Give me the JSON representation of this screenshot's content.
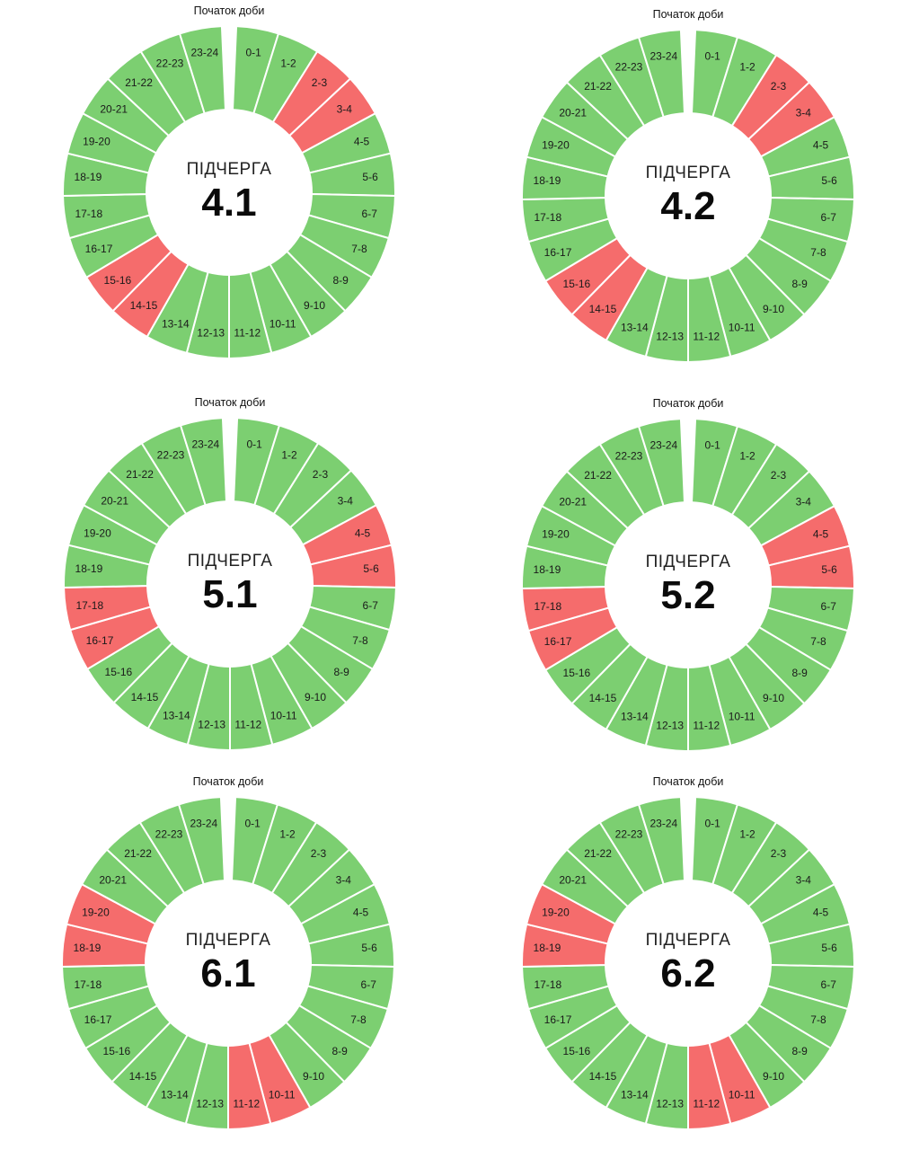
{
  "colors": {
    "on": "#7ccf71",
    "off": "#f56c6c",
    "separator": "#ffffff"
  },
  "chart_data": [
    {
      "type": "donut",
      "top_label": "Початок доби",
      "caption": "ПІДЧЕРГА",
      "queue": "4.1",
      "segments": [
        "0-1",
        "1-2",
        "2-3",
        "3-4",
        "4-5",
        "5-6",
        "6-7",
        "7-8",
        "8-9",
        "9-10",
        "10-11",
        "11-12",
        "12-13",
        "13-14",
        "14-15",
        "15-16",
        "16-17",
        "17-18",
        "18-19",
        "19-20",
        "20-21",
        "21-22",
        "22-23",
        "23-24"
      ],
      "outage_hours": [
        "2-3",
        "3-4",
        "14-15",
        "15-16"
      ]
    },
    {
      "type": "donut",
      "top_label": "Початок доби",
      "caption": "ПІДЧЕРГА",
      "queue": "4.2",
      "segments": [
        "0-1",
        "1-2",
        "2-3",
        "3-4",
        "4-5",
        "5-6",
        "6-7",
        "7-8",
        "8-9",
        "9-10",
        "10-11",
        "11-12",
        "12-13",
        "13-14",
        "14-15",
        "15-16",
        "16-17",
        "17-18",
        "18-19",
        "19-20",
        "20-21",
        "21-22",
        "22-23",
        "23-24"
      ],
      "outage_hours": [
        "2-3",
        "3-4",
        "14-15",
        "15-16"
      ]
    },
    {
      "type": "donut",
      "top_label": "Початок доби",
      "caption": "ПІДЧЕРГА",
      "queue": "5.1",
      "segments": [
        "0-1",
        "1-2",
        "2-3",
        "3-4",
        "4-5",
        "5-6",
        "6-7",
        "7-8",
        "8-9",
        "9-10",
        "10-11",
        "11-12",
        "12-13",
        "13-14",
        "14-15",
        "15-16",
        "16-17",
        "17-18",
        "18-19",
        "19-20",
        "20-21",
        "21-22",
        "22-23",
        "23-24"
      ],
      "outage_hours": [
        "4-5",
        "5-6",
        "16-17",
        "17-18"
      ]
    },
    {
      "type": "donut",
      "top_label": "Початок доби",
      "caption": "ПІДЧЕРГА",
      "queue": "5.2",
      "segments": [
        "0-1",
        "1-2",
        "2-3",
        "3-4",
        "4-5",
        "5-6",
        "6-7",
        "7-8",
        "8-9",
        "9-10",
        "10-11",
        "11-12",
        "12-13",
        "13-14",
        "14-15",
        "15-16",
        "16-17",
        "17-18",
        "18-19",
        "19-20",
        "20-21",
        "21-22",
        "22-23",
        "23-24"
      ],
      "outage_hours": [
        "4-5",
        "5-6",
        "16-17",
        "17-18"
      ]
    },
    {
      "type": "donut",
      "top_label": "Початок доби",
      "caption": "ПІДЧЕРГА",
      "queue": "6.1",
      "segments": [
        "0-1",
        "1-2",
        "2-3",
        "3-4",
        "4-5",
        "5-6",
        "6-7",
        "7-8",
        "8-9",
        "9-10",
        "10-11",
        "11-12",
        "12-13",
        "13-14",
        "14-15",
        "15-16",
        "16-17",
        "17-18",
        "18-19",
        "19-20",
        "20-21",
        "21-22",
        "22-23",
        "23-24"
      ],
      "outage_hours": [
        "10-11",
        "11-12",
        "18-19",
        "19-20"
      ]
    },
    {
      "type": "donut",
      "top_label": "Початок доби",
      "caption": "ПІДЧЕРГА",
      "queue": "6.2",
      "segments": [
        "0-1",
        "1-2",
        "2-3",
        "3-4",
        "4-5",
        "5-6",
        "6-7",
        "7-8",
        "8-9",
        "9-10",
        "10-11",
        "11-12",
        "12-13",
        "13-14",
        "14-15",
        "15-16",
        "16-17",
        "17-18",
        "18-19",
        "19-20",
        "20-21",
        "21-22",
        "22-23",
        "23-24"
      ],
      "outage_hours": [
        "10-11",
        "11-12",
        "18-19",
        "19-20"
      ]
    }
  ]
}
